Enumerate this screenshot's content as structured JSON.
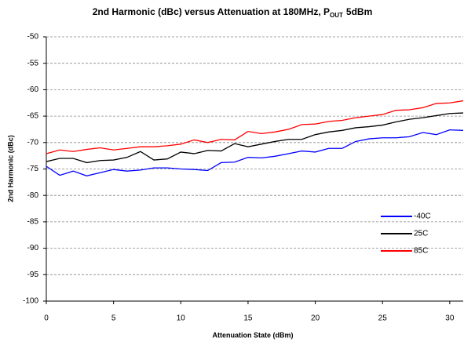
{
  "chart_data": {
    "type": "line",
    "title": "2nd Harmonic (dBc) versus Attenuation at 180MHz, P",
    "title_subscript": "OUT",
    "title_suffix": "5dBm",
    "x_label": "Attenuation State (dBm)",
    "y_label": "2nd Harmonic (dBc)",
    "x": [
      0,
      1,
      2,
      3,
      4,
      5,
      6,
      7,
      8,
      9,
      10,
      11,
      12,
      13,
      14,
      15,
      16,
      17,
      18,
      19,
      20,
      21,
      22,
      23,
      24,
      25,
      26,
      27,
      28,
      29,
      30,
      31
    ],
    "series": [
      {
        "name": "-40C",
        "color": "#0000ff",
        "values": [
          -74.5,
          -76.2,
          -75.4,
          -76.3,
          -75.7,
          -75.1,
          -75.4,
          -75.2,
          -74.8,
          -74.8,
          -75.0,
          -75.1,
          -75.3,
          -73.8,
          -73.7,
          -72.8,
          -72.9,
          -72.6,
          -72.1,
          -71.6,
          -71.8,
          -71.1,
          -71.1,
          -69.8,
          -69.3,
          -69.1,
          -69.1,
          -68.9,
          -68.1,
          -68.5,
          -67.6,
          -67.7
        ]
      },
      {
        "name": "25C",
        "color": "#000000",
        "values": [
          -73.6,
          -73.0,
          -73.0,
          -73.8,
          -73.4,
          -73.3,
          -72.8,
          -71.7,
          -73.3,
          -73.1,
          -71.8,
          -72.1,
          -71.5,
          -71.6,
          -70.2,
          -70.8,
          -70.3,
          -69.8,
          -69.4,
          -69.4,
          -68.5,
          -68.0,
          -67.7,
          -67.2,
          -67.0,
          -66.7,
          -66.1,
          -65.6,
          -65.3,
          -64.9,
          -64.5,
          -64.4
        ]
      },
      {
        "name": "85C",
        "color": "#ff0000",
        "values": [
          -72.1,
          -71.4,
          -71.7,
          -71.3,
          -71.0,
          -71.4,
          -71.1,
          -70.8,
          -70.8,
          -70.6,
          -70.3,
          -69.5,
          -70.0,
          -69.4,
          -69.5,
          -67.9,
          -68.3,
          -68.0,
          -67.5,
          -66.6,
          -66.5,
          -66.0,
          -65.8,
          -65.3,
          -65.0,
          -64.7,
          -63.9,
          -63.8,
          -63.4,
          -62.6,
          -62.5,
          -62.1
        ]
      }
    ],
    "xlim": [
      0,
      31
    ],
    "xticks": [
      0,
      5,
      10,
      15,
      20,
      25,
      30
    ],
    "ylim": [
      -100,
      -50
    ],
    "yticks": [
      -100,
      -95,
      -90,
      -85,
      -80,
      -75,
      -70,
      -65,
      -60,
      -55,
      -50
    ],
    "grid": true,
    "legend": "lower-right"
  }
}
